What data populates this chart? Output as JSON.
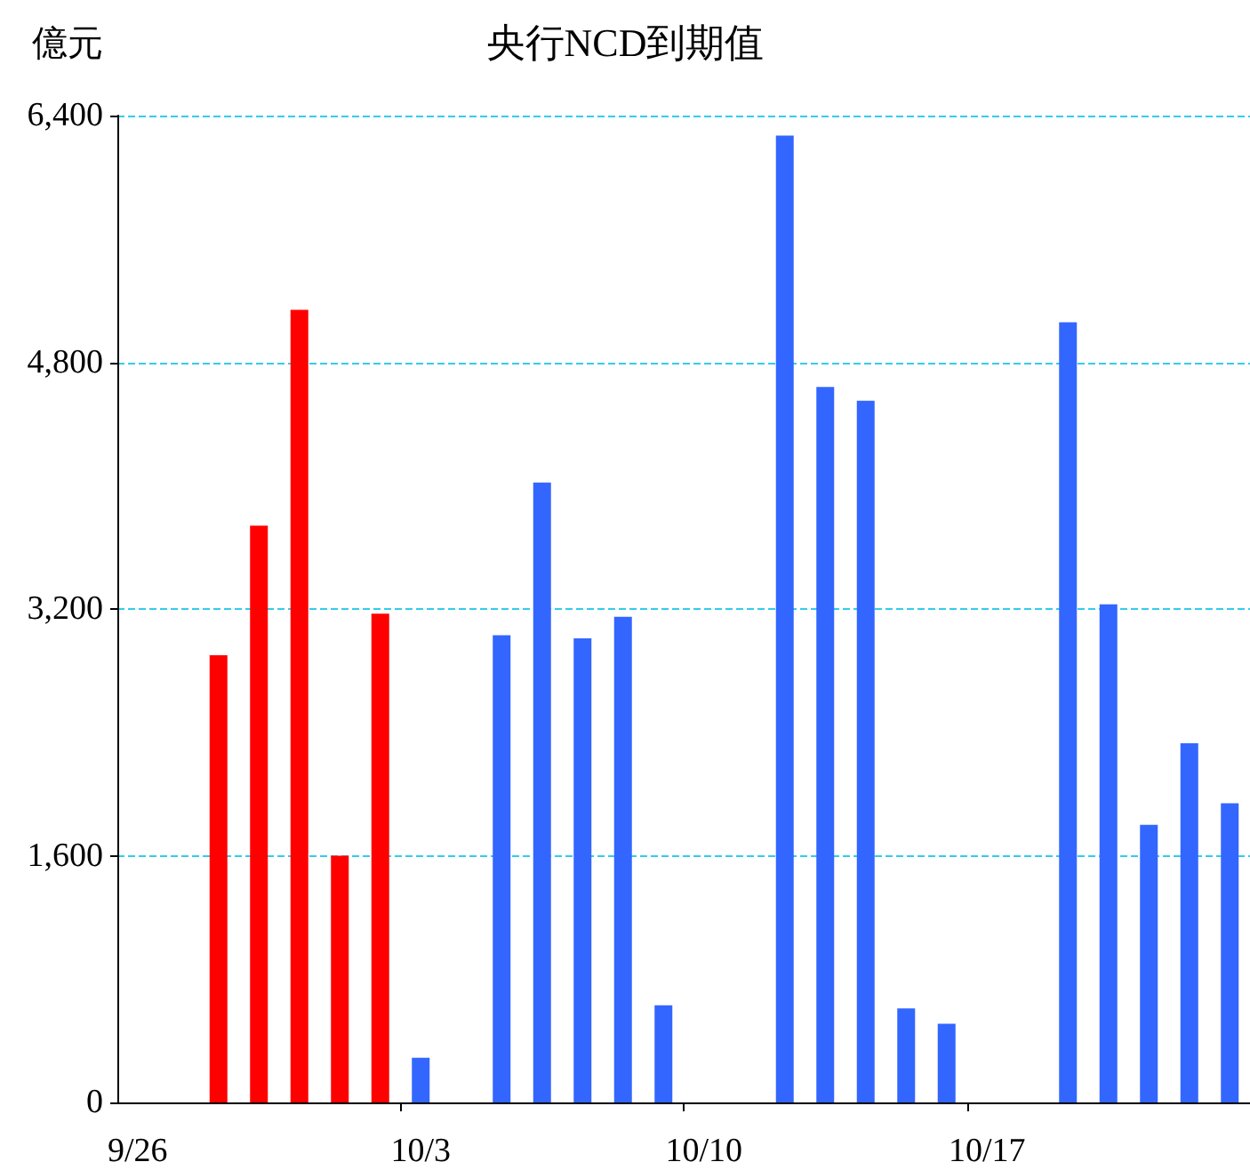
{
  "chart_data": {
    "type": "bar",
    "title": "央行NCD到期值",
    "ylabel": "億元",
    "categories": [
      "9/26",
      null,
      null,
      null,
      null,
      null,
      null,
      "10/3",
      null,
      null,
      null,
      null,
      null,
      null,
      "10/10",
      null,
      null,
      null,
      null,
      null,
      null,
      "10/17",
      null,
      null,
      null,
      null,
      null,
      null
    ],
    "values": [
      null,
      null,
      2900,
      3740,
      5140,
      1600,
      3170,
      290,
      null,
      3030,
      4020,
      3010,
      3150,
      630,
      null,
      null,
      6270,
      4640,
      4550,
      610,
      510,
      null,
      null,
      5060,
      3230,
      1800,
      2330,
      1940
    ],
    "colors": [
      "#3366ff",
      "#3366ff",
      "#ff0000",
      "#ff0000",
      "#ff0000",
      "#ff0000",
      "#ff0000",
      "#3366ff",
      "#3366ff",
      "#3366ff",
      "#3366ff",
      "#3366ff",
      "#3366ff",
      "#3366ff",
      "#3366ff",
      "#3366ff",
      "#3366ff",
      "#3366ff",
      "#3366ff",
      "#3366ff",
      "#3366ff",
      "#3366ff",
      "#3366ff",
      "#3366ff",
      "#3366ff",
      "#3366ff",
      "#3366ff",
      "#3366ff"
    ],
    "ylim": [
      0,
      6400
    ],
    "yticks": [
      {
        "value": 0,
        "label": "0"
      },
      {
        "value": 1600,
        "label": "1,600"
      },
      {
        "value": 3200,
        "label": "3,200"
      },
      {
        "value": 4800,
        "label": "4,800"
      },
      {
        "value": 6400,
        "label": "6,400"
      }
    ],
    "grid": "y"
  }
}
